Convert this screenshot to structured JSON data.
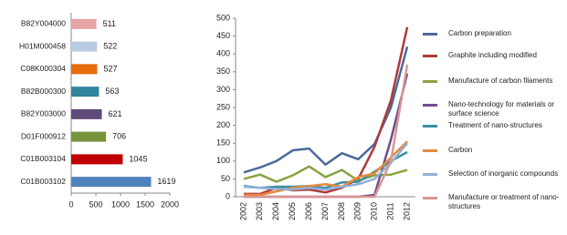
{
  "chart_data": [
    {
      "type": "bar",
      "orientation": "horizontal",
      "categories": [
        "B82Y004000",
        "H01M000458",
        "C08K000304",
        "B82B000300",
        "B82Y003000",
        "D01F000912",
        "C01B003104",
        "C01B003102"
      ],
      "values": [
        511,
        522,
        527,
        563,
        621,
        706,
        1045,
        1619
      ],
      "colors": [
        "#e6a5a5",
        "#b8cce4",
        "#e46c0a",
        "#31859c",
        "#604a7b",
        "#77933c",
        "#c00000",
        "#4f81bd"
      ],
      "xlim": [
        0,
        2000
      ],
      "xticks": [
        0,
        500,
        1000,
        1500,
        2000
      ]
    },
    {
      "type": "line",
      "categories": [
        "2002",
        "2003",
        "2004",
        "2005",
        "2006",
        "2007",
        "2008",
        "2009",
        "2010",
        "2011",
        "2012"
      ],
      "ylim": [
        0,
        500
      ],
      "yticks": [
        0,
        50,
        100,
        150,
        200,
        250,
        300,
        350,
        400,
        450,
        500
      ],
      "legend": "right",
      "series": [
        {
          "name": "Carbon preparation",
          "color": "#4a6a9c",
          "values": [
            68,
            82,
            100,
            130,
            135,
            90,
            122,
            105,
            148,
            250,
            420
          ]
        },
        {
          "name": "Graphite including modified",
          "color": "#b03a3a",
          "values": [
            8,
            8,
            25,
            18,
            20,
            12,
            25,
            50,
            140,
            270,
            475
          ]
        },
        {
          "name": "Manufacture of carbon filaments",
          "color": "#8aa343",
          "values": [
            50,
            62,
            42,
            60,
            85,
            55,
            75,
            45,
            60,
            62,
            75
          ]
        },
        {
          "name": "Nano-technology for materials or surface science",
          "color": "#6e4f8c",
          "values": [
            0,
            0,
            0,
            0,
            0,
            0,
            0,
            0,
            5,
            160,
            345
          ]
        },
        {
          "name": "Treatment of nano-structures",
          "color": "#3a8fa3",
          "values": [
            30,
            25,
            28,
            28,
            30,
            25,
            40,
            42,
            70,
            100,
            125
          ]
        },
        {
          "name": "Carbon",
          "color": "#e88a3a",
          "values": [
            5,
            5,
            15,
            25,
            30,
            35,
            28,
            55,
            65,
            110,
            155
          ]
        },
        {
          "name": "Selection of inorganic compounds",
          "color": "#8fb0d8",
          "values": [
            28,
            25,
            22,
            20,
            25,
            20,
            28,
            35,
            50,
            95,
            150
          ]
        },
        {
          "name": "Manufacture or treatment of nano-structures",
          "color": "#d99694",
          "values": [
            0,
            0,
            0,
            0,
            0,
            0,
            0,
            0,
            0,
            100,
            370
          ]
        }
      ]
    }
  ]
}
